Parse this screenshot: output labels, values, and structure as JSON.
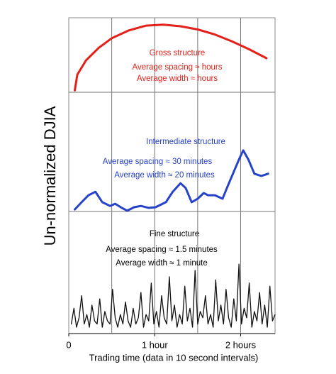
{
  "chart_data": {
    "type": "line",
    "xlabel": "Trading time (data in 10 second intervals)",
    "ylabel": "Un-normalized DJIA",
    "xlim": [
      0,
      2.4
    ],
    "ylim": [
      0,
      100
    ],
    "xticks": [
      0,
      {
        "value": 1,
        "label": "1 hour"
      },
      {
        "value": 2,
        "label": "2 hours"
      }
    ],
    "xgrid": [
      0.5,
      1,
      1.5,
      2
    ],
    "annotations": [
      {
        "text": "Gross structure",
        "color": "#e32119"
      },
      {
        "text": "Average spacing ≈ hours",
        "color": "#e32119"
      },
      {
        "text": "Average width ≈ hours",
        "color": "#e32119"
      },
      {
        "text": "Intermediate structure",
        "color": "#2642c8"
      },
      {
        "text": "Average spacing ≈ 30 minutes",
        "color": "#2642c8"
      },
      {
        "text": "Average width ≈ 20 minutes",
        "color": "#2642c8"
      },
      {
        "text": "Fine structure",
        "color": "#000000"
      },
      {
        "text": "Average spacing ≈ 1.5 minutes",
        "color": "#000000"
      },
      {
        "text": "Average width ≈ 1 minute",
        "color": "#000000"
      }
    ],
    "series": [
      {
        "color": "#e32119",
        "x": [
          0.07,
          0.1,
          0.2,
          0.35,
          0.5,
          0.7,
          0.9,
          1.1,
          1.3,
          1.5,
          1.7,
          1.9,
          2.1,
          2.3
        ],
        "values": [
          77,
          82,
          86.5,
          90.5,
          93.5,
          96,
          97.5,
          97.8,
          97.3,
          96.3,
          94.7,
          92.5,
          90,
          87.2
        ]
      },
      {
        "color": "#2642c8",
        "x": [
          0.07,
          0.15,
          0.23,
          0.31,
          0.39,
          0.48,
          0.54,
          0.61,
          0.68,
          0.76,
          0.84,
          0.93,
          1.01,
          1.13,
          1.21,
          1.3,
          1.36,
          1.43,
          1.5,
          1.57,
          1.62,
          1.7,
          1.79,
          1.84,
          1.91,
          1.98,
          2.03,
          2.09,
          2.16,
          2.24,
          2.32
        ],
        "values": [
          39.3,
          41.6,
          43.8,
          44.9,
          41.6,
          40.4,
          41.1,
          39.9,
          38.9,
          40,
          40.4,
          39.8,
          40,
          41.6,
          44.9,
          47.6,
          46.1,
          41.6,
          42.7,
          44.5,
          43.8,
          43.8,
          42.7,
          46.1,
          50.6,
          55.1,
          58,
          55.1,
          50.6,
          49.9,
          50.6
        ]
      },
      {
        "color": "#111111",
        "x": [
          0.03,
          0.06,
          0.09,
          0.12,
          0.15,
          0.18,
          0.21,
          0.24,
          0.27,
          0.3,
          0.33,
          0.36,
          0.39,
          0.42,
          0.45,
          0.48,
          0.51,
          0.54,
          0.57,
          0.6,
          0.63,
          0.66,
          0.69,
          0.72,
          0.75,
          0.78,
          0.81,
          0.84,
          0.87,
          0.9,
          0.93,
          0.96,
          0.99,
          1.02,
          1.05,
          1.08,
          1.11,
          1.14,
          1.17,
          1.2,
          1.23,
          1.26,
          1.29,
          1.32,
          1.35,
          1.38,
          1.41,
          1.44,
          1.47,
          1.5,
          1.53,
          1.56,
          1.59,
          1.62,
          1.65,
          1.68,
          1.71,
          1.74,
          1.77,
          1.8,
          1.83,
          1.86,
          1.89,
          1.92,
          1.95,
          1.98,
          2.01,
          2.04,
          2.07,
          2.1,
          2.13,
          2.16,
          2.19,
          2.22,
          2.25,
          2.28,
          2.31,
          2.34,
          2.37,
          2.4
        ],
        "values": [
          3,
          8,
          2,
          5,
          12,
          3,
          6,
          2,
          9,
          4,
          3,
          11,
          2,
          7,
          4,
          3,
          14,
          5,
          2,
          6,
          3,
          10,
          4,
          2,
          8,
          3,
          5,
          13,
          2,
          6,
          4,
          16,
          3,
          7,
          2,
          12,
          5,
          3,
          18,
          4,
          9,
          2,
          6,
          3,
          15,
          4,
          8,
          2,
          20,
          3,
          7,
          5,
          12,
          3,
          6,
          2,
          17,
          4,
          9,
          3,
          14,
          5,
          2,
          11,
          4,
          22,
          3,
          8,
          5,
          16,
          2,
          7,
          4,
          13,
          3,
          9,
          2,
          15,
          4,
          6
        ]
      }
    ]
  }
}
